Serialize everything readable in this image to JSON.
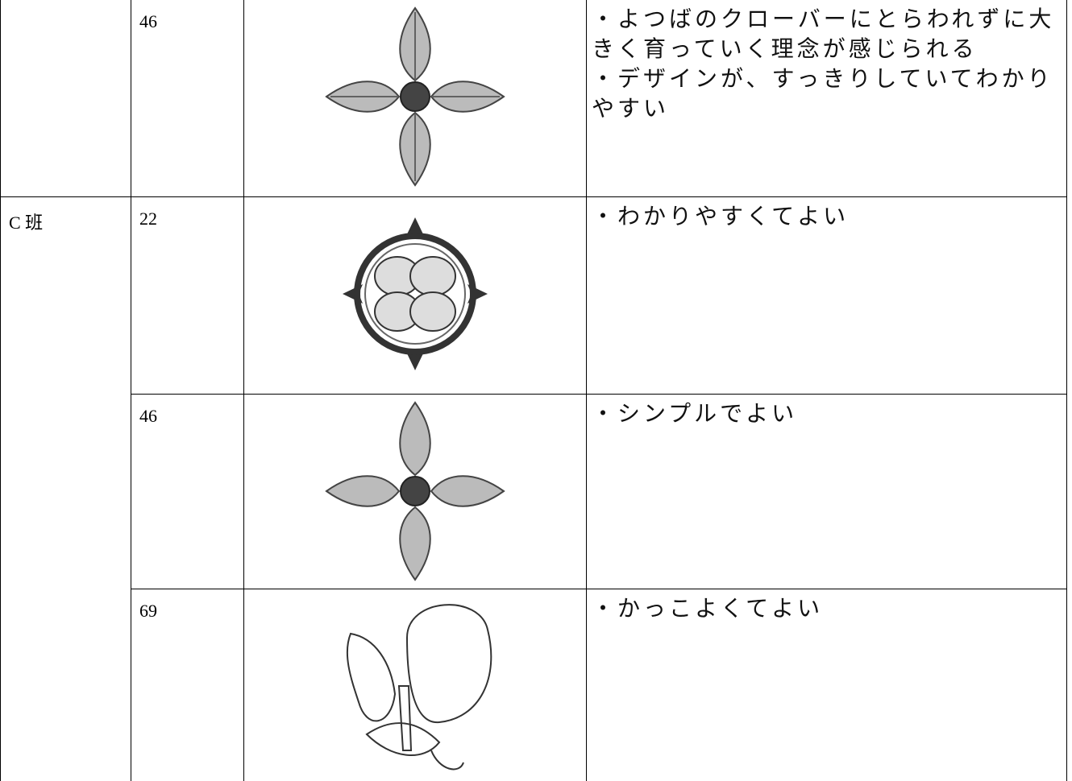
{
  "table": {
    "rows": [
      [
        "",
        46,
        [
          "・よつばのクローバーにとらわれずに大きく育っていく理念が感じられる",
          "・デザインが、すっきりしていてわかりやすい"
        ]
      ],
      [
        "C 班",
        22,
        [
          "・わかりやすくてよい"
        ]
      ],
      [
        46,
        [
          "・シンプルでよい"
        ]
      ],
      [
        69,
        [
          "・かっこよくてよい"
        ]
      ]
    ]
  }
}
